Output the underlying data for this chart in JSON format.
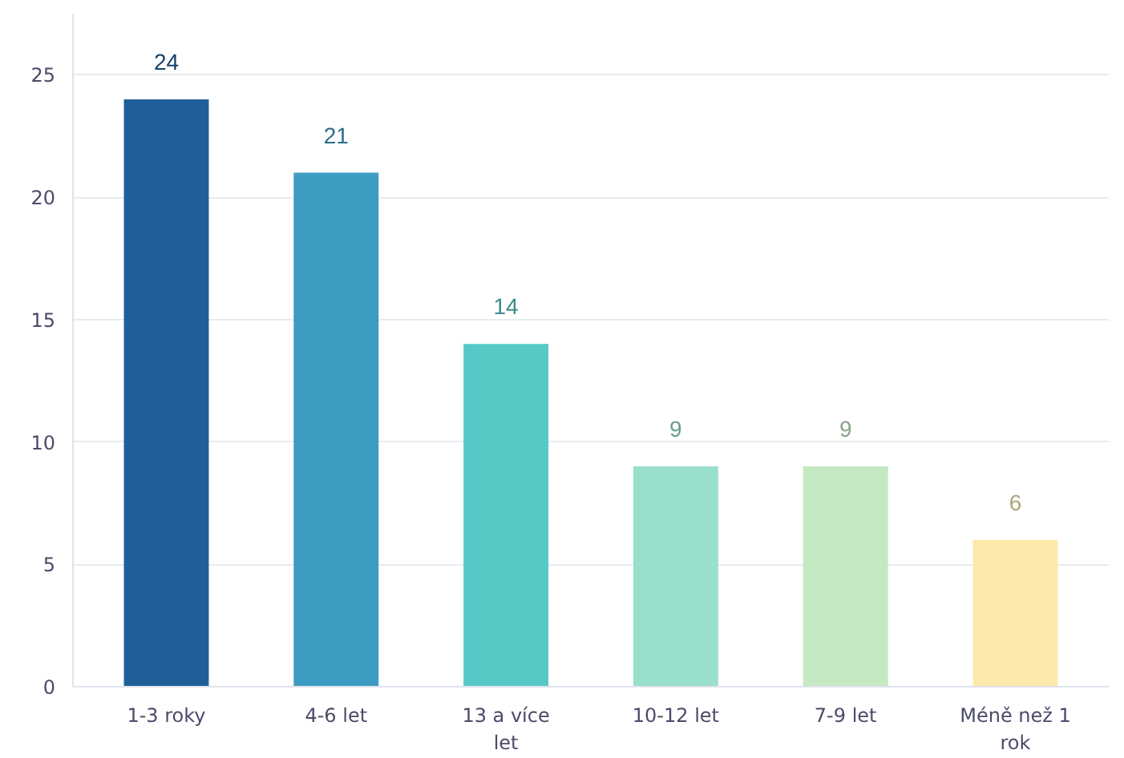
{
  "chart_data": {
    "type": "bar",
    "categories": [
      "1-3 roky",
      "4-6 let",
      "13 a více let",
      "10-12 let",
      "7-9 let",
      "Méně než 1 rok"
    ],
    "values": [
      24,
      21,
      14,
      9,
      9,
      6
    ],
    "colors": [
      "#1f5f99",
      "#3e9bc1",
      "#56c9c7",
      "#99dfcb",
      "#c5e9c2",
      "#fdeaab"
    ],
    "ylim": [
      0,
      27.5
    ],
    "yticks": [
      0,
      5,
      10,
      15,
      20,
      25
    ],
    "grid": "y",
    "data_labels": true
  }
}
